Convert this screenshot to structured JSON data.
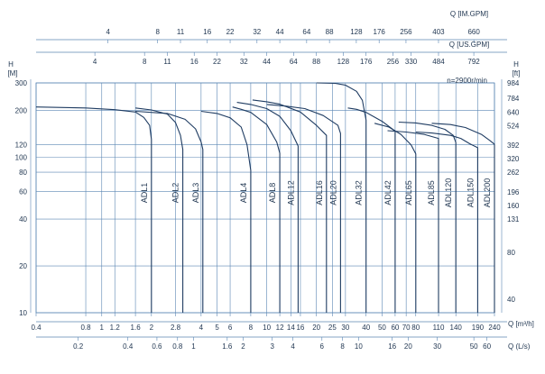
{
  "chart_data": {
    "type": "line",
    "annotation": "n=2900r/min",
    "colors": {
      "grid": "#5b86b3",
      "curve": "#1f3c62",
      "text": "#1f3550"
    },
    "axes": {
      "im_gpm": {
        "label": "Q [IM.GPM]",
        "ticks": [
          "4",
          "8",
          "11",
          "16",
          "22",
          "32",
          "44",
          "64",
          "88",
          "128",
          "176",
          "256",
          "403",
          "660"
        ]
      },
      "us_gpm": {
        "label": "Q [US.GPM]",
        "ticks": [
          "4",
          "8",
          "11",
          "16",
          "22",
          "32",
          "44",
          "64",
          "88",
          "128",
          "176",
          "256",
          "330",
          "484",
          "792"
        ]
      },
      "m3h": {
        "label": "Q [m³/h]",
        "scale": "log",
        "range": [
          0.4,
          240
        ],
        "ticks": [
          "0.4",
          "0.8",
          "1",
          "1.2",
          "1.6",
          "2",
          "2.8",
          "4",
          "5",
          "6",
          "8",
          "10",
          "12",
          "14",
          "16",
          "20",
          "25",
          "30",
          "40",
          "50",
          "60",
          "70",
          "80",
          "110",
          "140",
          "190",
          "240"
        ]
      },
      "ls": {
        "label": "Q (L/s)",
        "ticks": [
          "0.2",
          "0.4",
          "0.6",
          "0.8",
          "1",
          "1.6",
          "2",
          "3",
          "4",
          "6",
          "8",
          "10",
          "16",
          "20",
          "30",
          "50",
          "60"
        ]
      },
      "head_m": {
        "label": "H [M]",
        "scale": "log",
        "range": [
          10,
          300
        ],
        "ticks": [
          "300",
          "200",
          "120",
          "100",
          "80",
          "60",
          "40",
          "20",
          "10"
        ]
      },
      "head_ft": {
        "label": "H [ft]",
        "ticks": [
          "984",
          "784",
          "640",
          "524",
          "392",
          "320",
          "262",
          "196",
          "160",
          "131",
          "80",
          "40"
        ]
      }
    },
    "series": [
      {
        "name": "ADL1",
        "points": [
          [
            0.4,
            210
          ],
          [
            0.8,
            207
          ],
          [
            1.2,
            202
          ],
          [
            1.6,
            195
          ],
          [
            1.8,
            180
          ],
          [
            1.95,
            160
          ],
          [
            2,
            130
          ],
          [
            2,
            10
          ]
        ]
      },
      {
        "name": "ADL2",
        "points": [
          [
            1.6,
            207
          ],
          [
            2,
            201
          ],
          [
            2.5,
            189
          ],
          [
            2.8,
            167
          ],
          [
            3,
            138
          ],
          [
            3.1,
            112
          ],
          [
            3.1,
            10
          ]
        ]
      },
      {
        "name": "ADL3",
        "points": [
          [
            1.6,
            197
          ],
          [
            2.5,
            191
          ],
          [
            3.2,
            175
          ],
          [
            3.7,
            152
          ],
          [
            4,
            125
          ],
          [
            4.1,
            112
          ],
          [
            4.1,
            10
          ]
        ]
      },
      {
        "name": "ADL4",
        "points": [
          [
            4,
            197
          ],
          [
            5,
            191
          ],
          [
            6,
            179
          ],
          [
            7,
            156
          ],
          [
            7.6,
            120
          ],
          [
            8,
            82
          ],
          [
            8,
            10
          ]
        ]
      },
      {
        "name": "ADL8",
        "points": [
          [
            6.2,
            210
          ],
          [
            7,
            203
          ],
          [
            8,
            194
          ],
          [
            10,
            162
          ],
          [
            11.5,
            125
          ],
          [
            12,
            106
          ],
          [
            12,
            10
          ]
        ]
      },
      {
        "name": "ADL12",
        "points": [
          [
            6.6,
            225
          ],
          [
            8,
            218
          ],
          [
            10,
            205
          ],
          [
            12,
            183
          ],
          [
            14,
            148
          ],
          [
            15.5,
            118
          ],
          [
            15.5,
            10
          ]
        ]
      },
      {
        "name": "ADL16",
        "points": [
          [
            8.2,
            233
          ],
          [
            10,
            227
          ],
          [
            12,
            219
          ],
          [
            16,
            195
          ],
          [
            20,
            160
          ],
          [
            23,
            138
          ],
          [
            23,
            10
          ]
        ]
      },
      {
        "name": "ADL20",
        "points": [
          [
            10,
            218
          ],
          [
            13,
            213
          ],
          [
            17,
            205
          ],
          [
            22,
            185
          ],
          [
            27,
            160
          ],
          [
            28,
            142
          ],
          [
            28,
            10
          ]
        ]
      },
      {
        "name": "ADL32",
        "points": [
          [
            20,
            300
          ],
          [
            26,
            298
          ],
          [
            30,
            290
          ],
          [
            35,
            265
          ],
          [
            38,
            232
          ],
          [
            40,
            173
          ],
          [
            40,
            10
          ]
        ]
      },
      {
        "name": "ADL42",
        "points": [
          [
            31,
            207
          ],
          [
            35,
            203
          ],
          [
            40,
            194
          ],
          [
            50,
            170
          ],
          [
            60,
            147
          ],
          [
            60,
            10
          ]
        ]
      },
      {
        "name": "ADL65",
        "points": [
          [
            45,
            165
          ],
          [
            55,
            156
          ],
          [
            65,
            140
          ],
          [
            75,
            120
          ],
          [
            80,
            105
          ],
          [
            80,
            10
          ]
        ]
      },
      {
        "name": "ADL85",
        "points": [
          [
            54,
            148
          ],
          [
            70,
            145
          ],
          [
            90,
            140
          ],
          [
            110,
            132
          ],
          [
            110,
            10
          ]
        ]
      },
      {
        "name": "ADL120",
        "points": [
          [
            63,
            168
          ],
          [
            80,
            166
          ],
          [
            100,
            160
          ],
          [
            120,
            151
          ],
          [
            135,
            138
          ],
          [
            140,
            124
          ],
          [
            140,
            10
          ]
        ]
      },
      {
        "name": "ADL150",
        "points": [
          [
            80,
            145
          ],
          [
            100,
            143
          ],
          [
            130,
            138
          ],
          [
            150,
            132
          ],
          [
            170,
            122
          ],
          [
            190,
            115
          ],
          [
            190,
            10
          ]
        ]
      },
      {
        "name": "ADL200",
        "points": [
          [
            100,
            165
          ],
          [
            130,
            162
          ],
          [
            160,
            155
          ],
          [
            200,
            140
          ],
          [
            225,
            128
          ],
          [
            240,
            121
          ],
          [
            240,
            10
          ]
        ]
      }
    ]
  }
}
